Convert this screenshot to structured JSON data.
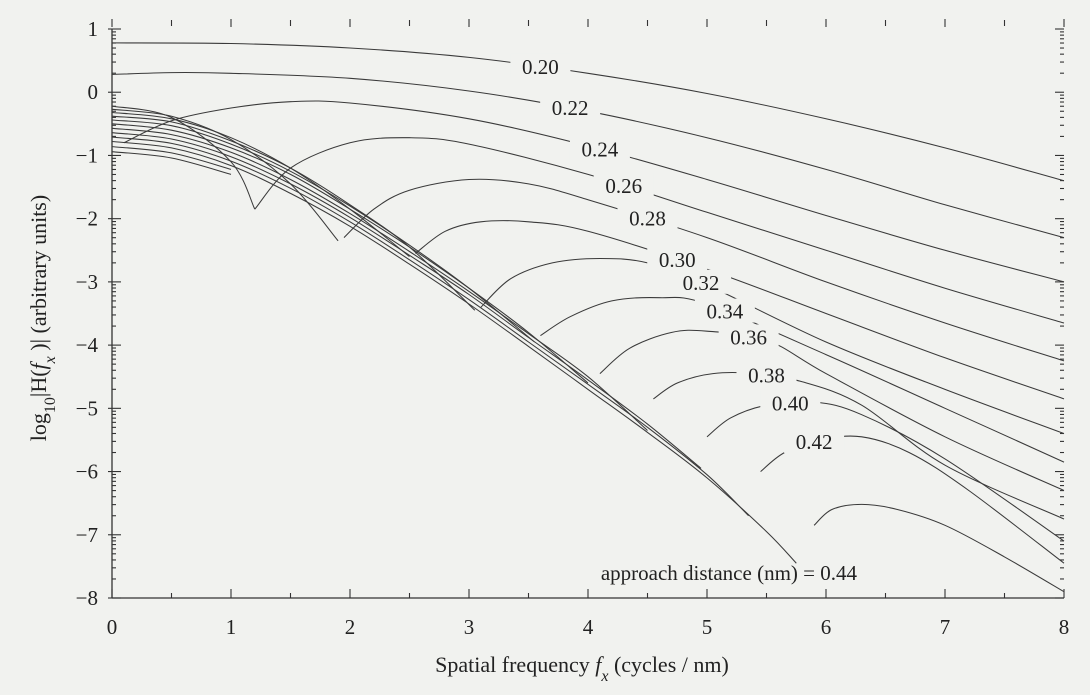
{
  "chart_data": {
    "type": "line",
    "xlabel_prefix": "Spatial frequency ",
    "xlabel_var": "f",
    "xlabel_sub": "x",
    "xlabel_suffix": " (cycles / nm)",
    "ylabel_log": "log",
    "ylabel_sub": "10",
    "ylabel_mid": "|H(",
    "ylabel_var": "f",
    "ylabel_var_sub": "x",
    "ylabel_end": " )| (arbitrary units)",
    "xlim": [
      0,
      8
    ],
    "ylim": [
      -8,
      1
    ],
    "xticks": [
      "0",
      "1",
      "2",
      "3",
      "4",
      "5",
      "6",
      "7",
      "8"
    ],
    "yticks": [
      "1",
      "0",
      "-1",
      "-2",
      "-3",
      "-4",
      "-5",
      "-6",
      "-7",
      "-8"
    ],
    "annotation": "approach distance (nm) = 0.44",
    "series": [
      {
        "name": "0.20",
        "x": [
          0,
          1,
          2,
          3,
          4,
          5,
          6,
          7,
          8
        ],
        "y": [
          0.78,
          0.77,
          0.7,
          0.55,
          0.3,
          -0.02,
          -0.42,
          -0.88,
          -1.4
        ]
      },
      {
        "name": "0.22",
        "x": [
          0,
          0.5,
          1,
          2,
          3,
          4,
          5,
          6,
          7,
          8
        ],
        "y": [
          0.28,
          0.31,
          0.3,
          0.22,
          0.02,
          -0.3,
          -0.72,
          -1.22,
          -1.78,
          -2.3
        ]
      },
      {
        "name": "0.24",
        "x": [
          0.1,
          0.5,
          1,
          1.5,
          2,
          3,
          4,
          5,
          6,
          7,
          8
        ],
        "y": [
          -0.8,
          -0.45,
          -0.25,
          -0.15,
          -0.17,
          -0.42,
          -0.85,
          -1.38,
          -1.95,
          -2.5,
          -3.0
        ]
      },
      {
        "name": "0.26",
        "x": [
          1.2,
          1.5,
          2,
          2.5,
          3,
          4,
          5,
          6,
          7,
          8
        ],
        "y": [
          -1.85,
          -1.2,
          -0.8,
          -0.72,
          -0.82,
          -1.3,
          -1.9,
          -2.5,
          -3.1,
          -3.65
        ]
      },
      {
        "name": "0.28",
        "x": [
          1.95,
          2.2,
          2.5,
          3,
          3.5,
          4,
          5,
          6,
          7,
          8
        ],
        "y": [
          -2.3,
          -1.85,
          -1.55,
          -1.38,
          -1.45,
          -1.7,
          -2.3,
          -3.0,
          -3.65,
          -4.25
        ]
      },
      {
        "name": "0.30",
        "x": [
          2.55,
          2.8,
          3.1,
          3.5,
          4,
          5,
          6,
          7,
          8
        ],
        "y": [
          -2.55,
          -2.2,
          -2.05,
          -2.05,
          -2.2,
          -2.8,
          -3.5,
          -4.2,
          -4.85
        ]
      },
      {
        "name": "0.32",
        "x": [
          3.1,
          3.35,
          3.7,
          4.1,
          4.5,
          5,
          6,
          7,
          8
        ],
        "y": [
          -3.4,
          -2.95,
          -2.7,
          -2.63,
          -2.7,
          -3.05,
          -3.95,
          -4.7,
          -5.4
        ]
      },
      {
        "name": "0.34",
        "x": [
          3.6,
          3.85,
          4.2,
          4.6,
          5,
          6,
          7,
          8
        ],
        "y": [
          -3.85,
          -3.55,
          -3.3,
          -3.25,
          -3.35,
          -4.15,
          -5.0,
          -5.85
        ]
      },
      {
        "name": "0.36",
        "x": [
          4.1,
          4.35,
          4.7,
          5,
          5.5,
          6,
          7,
          8
        ],
        "y": [
          -4.45,
          -4.05,
          -3.8,
          -3.78,
          -3.92,
          -4.45,
          -5.45,
          -6.3
        ]
      },
      {
        "name": "0.38",
        "x": [
          4.55,
          4.75,
          5.05,
          5.4,
          5.8,
          6.3,
          7,
          8
        ],
        "y": [
          -4.85,
          -4.6,
          -4.45,
          -4.45,
          -4.58,
          -4.95,
          -5.9,
          -6.75
        ]
      },
      {
        "name": "0.40",
        "x": [
          5.0,
          5.2,
          5.5,
          5.9,
          6.3,
          7,
          8
        ],
        "y": [
          -5.45,
          -5.15,
          -4.95,
          -4.9,
          -5.1,
          -5.8,
          -7.1
        ]
      },
      {
        "name": "0.42",
        "x": [
          5.45,
          5.65,
          5.95,
          6.3,
          6.7,
          7.2,
          8
        ],
        "y": [
          -6.0,
          -5.7,
          -5.5,
          -5.45,
          -5.7,
          -6.3,
          -7.45
        ]
      },
      {
        "name": "0.44",
        "x": [
          5.9,
          6.05,
          6.3,
          6.6,
          7,
          7.5,
          8
        ],
        "y": [
          -6.85,
          -6.6,
          -6.52,
          -6.6,
          -6.85,
          -7.35,
          -7.9
        ]
      }
    ],
    "decay_branches": [
      {
        "x": [
          0,
          0.5,
          1.0,
          1.2
        ],
        "y": [
          -0.22,
          -0.4,
          -1.1,
          -1.85
        ]
      },
      {
        "x": [
          0,
          0.5,
          1.0,
          1.5,
          1.9
        ],
        "y": [
          -0.27,
          -0.38,
          -0.75,
          -1.45,
          -2.35
        ]
      },
      {
        "x": [
          0,
          0.5,
          1.0,
          1.5,
          2.0,
          2.5
        ],
        "y": [
          -0.32,
          -0.42,
          -0.72,
          -1.2,
          -1.85,
          -2.6
        ]
      },
      {
        "x": [
          0,
          0.5,
          1.0,
          1.5,
          2.0,
          2.5,
          3.05
        ],
        "y": [
          -0.38,
          -0.47,
          -0.77,
          -1.2,
          -1.78,
          -2.45,
          -3.45
        ]
      },
      {
        "x": [
          0,
          0.5,
          1.0,
          1.5,
          2.0,
          2.5,
          3.0,
          3.55
        ],
        "y": [
          -0.44,
          -0.53,
          -0.82,
          -1.25,
          -1.8,
          -2.42,
          -3.1,
          -3.95
        ]
      },
      {
        "x": [
          0,
          0.5,
          1.0,
          1.5,
          2.0,
          2.5,
          3.0,
          3.5,
          4.0
        ],
        "y": [
          -0.5,
          -0.6,
          -0.88,
          -1.3,
          -1.85,
          -2.45,
          -3.1,
          -3.8,
          -4.6
        ]
      },
      {
        "x": [
          0,
          0.5,
          1.0,
          1.5,
          2.0,
          2.5,
          3.0,
          3.5,
          4.0,
          4.5
        ],
        "y": [
          -0.57,
          -0.67,
          -0.95,
          -1.38,
          -1.92,
          -2.52,
          -3.15,
          -3.82,
          -4.5,
          -5.35
        ]
      },
      {
        "x": [
          0,
          0.5,
          1.0,
          1.5,
          2.0,
          2.5,
          3.0,
          3.5,
          4.0,
          4.5,
          4.95
        ],
        "y": [
          -0.64,
          -0.74,
          -1.02,
          -1.45,
          -1.98,
          -2.58,
          -3.2,
          -3.88,
          -4.55,
          -5.25,
          -5.95
        ]
      },
      {
        "x": [
          0,
          0.5,
          1.0,
          1.5,
          2.0,
          2.5,
          3.0,
          3.5,
          4.0,
          4.5,
          5.0,
          5.35
        ],
        "y": [
          -0.71,
          -0.81,
          -1.09,
          -1.52,
          -2.05,
          -2.65,
          -3.28,
          -3.95,
          -4.62,
          -5.3,
          -6.05,
          -6.7
        ]
      },
      {
        "x": [
          0,
          0.5,
          1.0,
          1.5,
          2.0,
          2.5,
          3.0,
          3.5,
          4.0,
          4.5,
          5.0,
          5.5,
          5.75
        ],
        "y": [
          -0.78,
          -0.88,
          -1.16,
          -1.6,
          -2.12,
          -2.72,
          -3.35,
          -4.02,
          -4.7,
          -5.38,
          -6.1,
          -6.95,
          -7.45
        ]
      },
      {
        "x": [
          0,
          0.5,
          1.0
        ],
        "y": [
          -0.86,
          -0.96,
          -1.22
        ]
      },
      {
        "x": [
          0,
          0.5,
          1.0
        ],
        "y": [
          -0.94,
          -1.04,
          -1.3
        ]
      }
    ]
  }
}
